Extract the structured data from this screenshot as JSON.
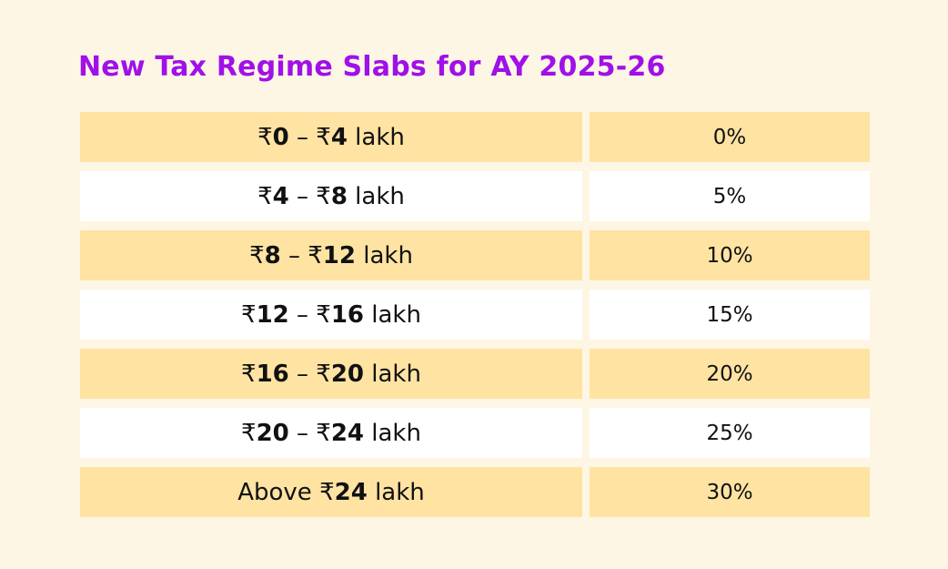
{
  "title": "New Tax Regime Slabs for AY 2025-26",
  "colors": {
    "background": "#FEF6E4",
    "title": "#A010E8",
    "row_shaded": "#FFE3A3",
    "row_plain": "#FFFFFF"
  },
  "rows": [
    {
      "prefix": "",
      "sym1": "₹",
      "from": "0",
      "dash": " – ",
      "sym2": "₹",
      "to": "4",
      "unit": " lakh",
      "rate": "0%"
    },
    {
      "prefix": "",
      "sym1": "₹",
      "from": "4",
      "dash": " – ",
      "sym2": "₹",
      "to": "8",
      "unit": " lakh",
      "rate": "5%"
    },
    {
      "prefix": "",
      "sym1": "₹",
      "from": "8",
      "dash": " – ",
      "sym2": "₹",
      "to": "12",
      "unit": " lakh",
      "rate": "10%"
    },
    {
      "prefix": "",
      "sym1": "₹",
      "from": "12",
      "dash": " – ",
      "sym2": "₹",
      "to": "16",
      "unit": " lakh",
      "rate": "15%"
    },
    {
      "prefix": "",
      "sym1": "₹",
      "from": "16",
      "dash": " – ",
      "sym2": "₹",
      "to": "20",
      "unit": " lakh",
      "rate": "20%"
    },
    {
      "prefix": "",
      "sym1": "₹",
      "from": "20",
      "dash": " – ",
      "sym2": "₹",
      "to": "24",
      "unit": " lakh",
      "rate": "25%"
    },
    {
      "prefix": "Above ",
      "sym1": "₹",
      "from": "24",
      "dash": "",
      "sym2": "",
      "to": "",
      "unit": " lakh",
      "rate": "30%"
    }
  ]
}
